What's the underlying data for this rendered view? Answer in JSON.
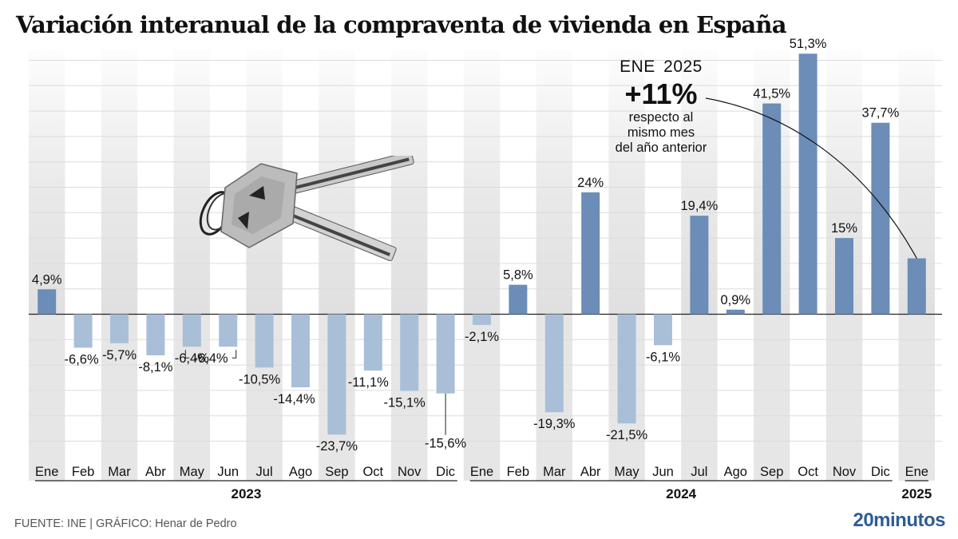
{
  "title": "Variación interanual de la compraventa de vivienda en España",
  "annotation": {
    "period": "ENE  2025",
    "value": "+11%",
    "description_lines": [
      "respecto al",
      "mismo mes",
      "del año anterior"
    ]
  },
  "footer": {
    "source": "FUENTE: INE  |  GRÁFICO: Henar de Pedro"
  },
  "logo": "20minutos",
  "colors": {
    "positive_bar": "#6b8db7",
    "negative_bar": "#a9bfd8",
    "stripe": "#e6e6e6",
    "gridline": "#dcdcdc",
    "logo": "#2f5d93"
  },
  "chart_data": {
    "type": "bar",
    "title": "Variación interanual de la compraventa de vivienda en España",
    "xlabel": "",
    "ylabel": "",
    "ylim": [
      -35,
      50
    ],
    "grid": true,
    "grid_step": 5,
    "categories": [
      "Ene",
      "Feb",
      "Mar",
      "Abr",
      "May",
      "Jun",
      "Jul",
      "Ago",
      "Sep",
      "Oct",
      "Nov",
      "Dic",
      "Ene",
      "Feb",
      "Mar",
      "Abr",
      "May",
      "Jun",
      "Jul",
      "Ago",
      "Sep",
      "Oct",
      "Nov",
      "Dic",
      "Ene"
    ],
    "years": [
      {
        "label": "2023",
        "start": 0,
        "end": 11
      },
      {
        "label": "2024",
        "start": 12,
        "end": 23
      },
      {
        "label": "2025",
        "start": 24,
        "end": 24
      }
    ],
    "values": [
      4.9,
      -6.6,
      -5.7,
      -8.1,
      -6.4,
      -6.4,
      -10.5,
      -14.4,
      -23.7,
      -11.1,
      -15.1,
      -15.6,
      -2.1,
      5.8,
      -19.3,
      24,
      -21.5,
      -6.1,
      19.4,
      0.9,
      41.5,
      51.3,
      15,
      37.7,
      11
    ],
    "labels": [
      "4,9%",
      "-6,6%",
      "-5,7%",
      "-8,1%",
      "-6,4%",
      "",
      "-10,5%",
      "-14,4%",
      "-23,7%",
      "-11,1%",
      "-15,1%",
      "-15,6%",
      "-2,1%",
      "5,8%",
      "-19,3%",
      "24%",
      "-21,5%",
      "-6,1%",
      "19,4%",
      "0,9%",
      "41,5%",
      "51,3%",
      "15%",
      "37,7%",
      ""
    ],
    "annotations": [
      {
        "text": "-6,4%",
        "note": "shared label for May and Jun 2023 (bracket)"
      },
      {
        "text": "+11%",
        "target": "Ene 2025"
      }
    ]
  }
}
